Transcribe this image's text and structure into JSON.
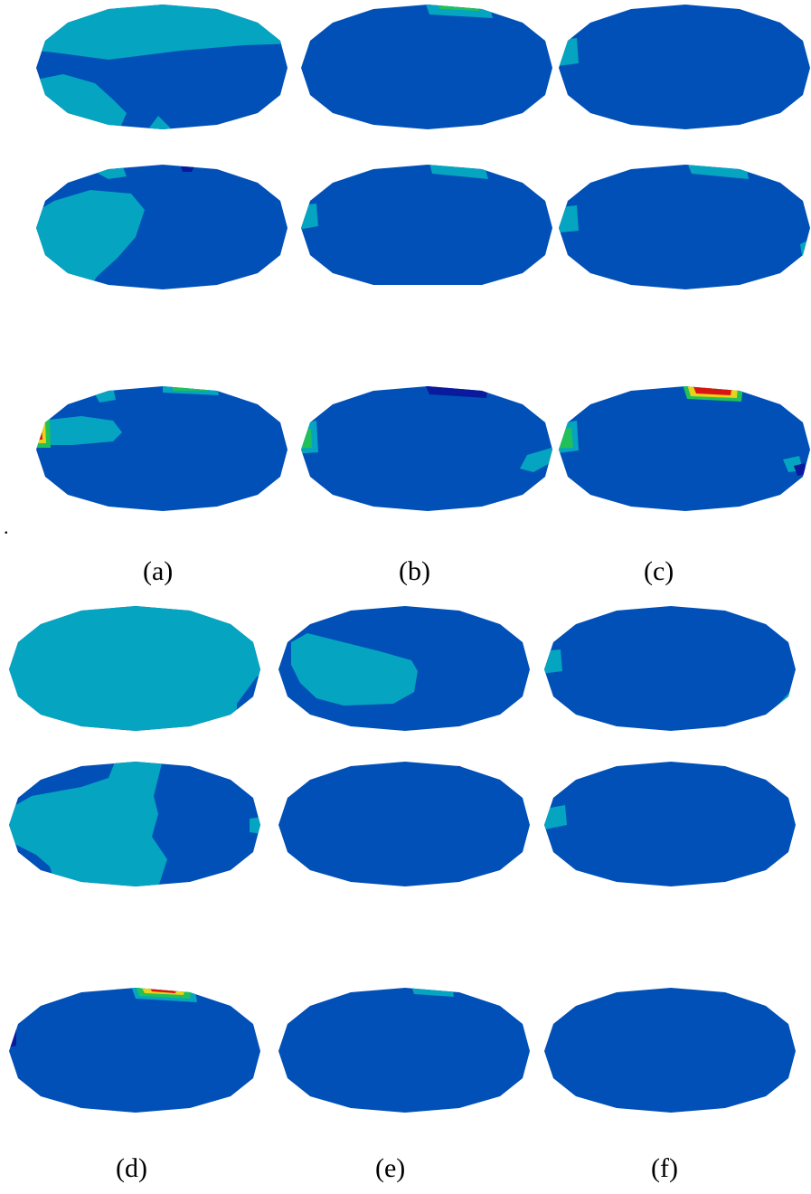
{
  "figure": {
    "stray_mark": ".",
    "panels": [
      {
        "id": "a",
        "label": "(a)"
      },
      {
        "id": "b",
        "label": "(b)"
      },
      {
        "id": "c",
        "label": "(c)"
      },
      {
        "id": "d",
        "label": "(d)"
      },
      {
        "id": "e",
        "label": "(e)"
      },
      {
        "id": "f",
        "label": "(f)"
      }
    ]
  },
  "colors": {
    "background": "#ffffff",
    "base_blue": "#0050b8",
    "light_cyan": "#05a4c0",
    "green": "#22c05a",
    "dark_blue": "#0a1a9c",
    "yellow": "#e8d21a",
    "red": "#d81414"
  }
}
